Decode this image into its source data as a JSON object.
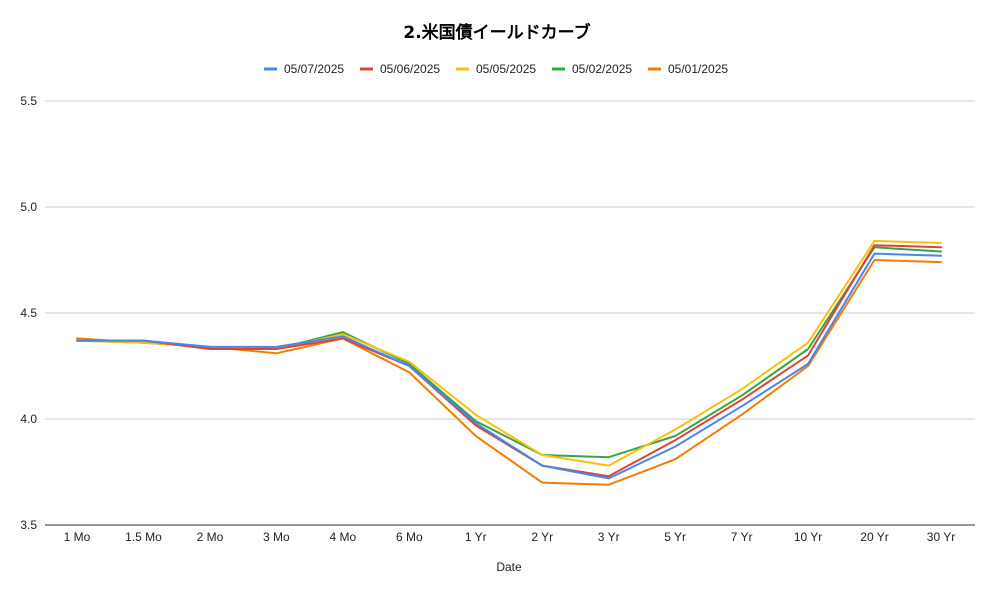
{
  "chart_data": {
    "type": "line",
    "title": "2.米国債イールドカーブ",
    "xlabel": "Date",
    "ylabel": "",
    "ylim": [
      3.5,
      5.5
    ],
    "yticks": [
      "3.5",
      "4.0",
      "4.5",
      "5.0",
      "5.5"
    ],
    "grid": true,
    "legend_position": "top",
    "categories": [
      "1 Mo",
      "1.5 Mo",
      "2 Mo",
      "3 Mo",
      "4 Mo",
      "6 Mo",
      "1 Yr",
      "2 Yr",
      "3 Yr",
      "5 Yr",
      "7 Yr",
      "10 Yr",
      "20 Yr",
      "30 Yr"
    ],
    "series": [
      {
        "name": "05/07/2025",
        "color": "#4a86e8",
        "values": [
          4.37,
          4.37,
          4.34,
          4.34,
          4.39,
          4.25,
          3.98,
          3.78,
          3.72,
          3.87,
          4.06,
          4.26,
          4.78,
          4.77
        ]
      },
      {
        "name": "05/06/2025",
        "color": "#db4437",
        "values": [
          4.37,
          4.37,
          4.33,
          4.33,
          4.38,
          4.25,
          3.97,
          3.78,
          3.73,
          3.9,
          4.09,
          4.3,
          4.82,
          4.81
        ]
      },
      {
        "name": "05/05/2025",
        "color": "#f4c20d",
        "values": [
          4.37,
          4.36,
          4.34,
          4.33,
          4.4,
          4.27,
          4.02,
          3.83,
          3.78,
          3.95,
          4.14,
          4.36,
          4.84,
          4.83
        ]
      },
      {
        "name": "05/02/2025",
        "color": "#3aa346",
        "values": [
          4.37,
          4.36,
          4.34,
          4.33,
          4.41,
          4.26,
          3.99,
          3.83,
          3.82,
          3.92,
          4.11,
          4.33,
          4.81,
          4.79
        ]
      },
      {
        "name": "05/01/2025",
        "color": "#f57c00",
        "values": [
          4.38,
          4.36,
          4.34,
          4.31,
          4.38,
          4.22,
          3.92,
          3.7,
          3.69,
          3.81,
          4.02,
          4.25,
          4.75,
          4.74
        ]
      }
    ]
  }
}
